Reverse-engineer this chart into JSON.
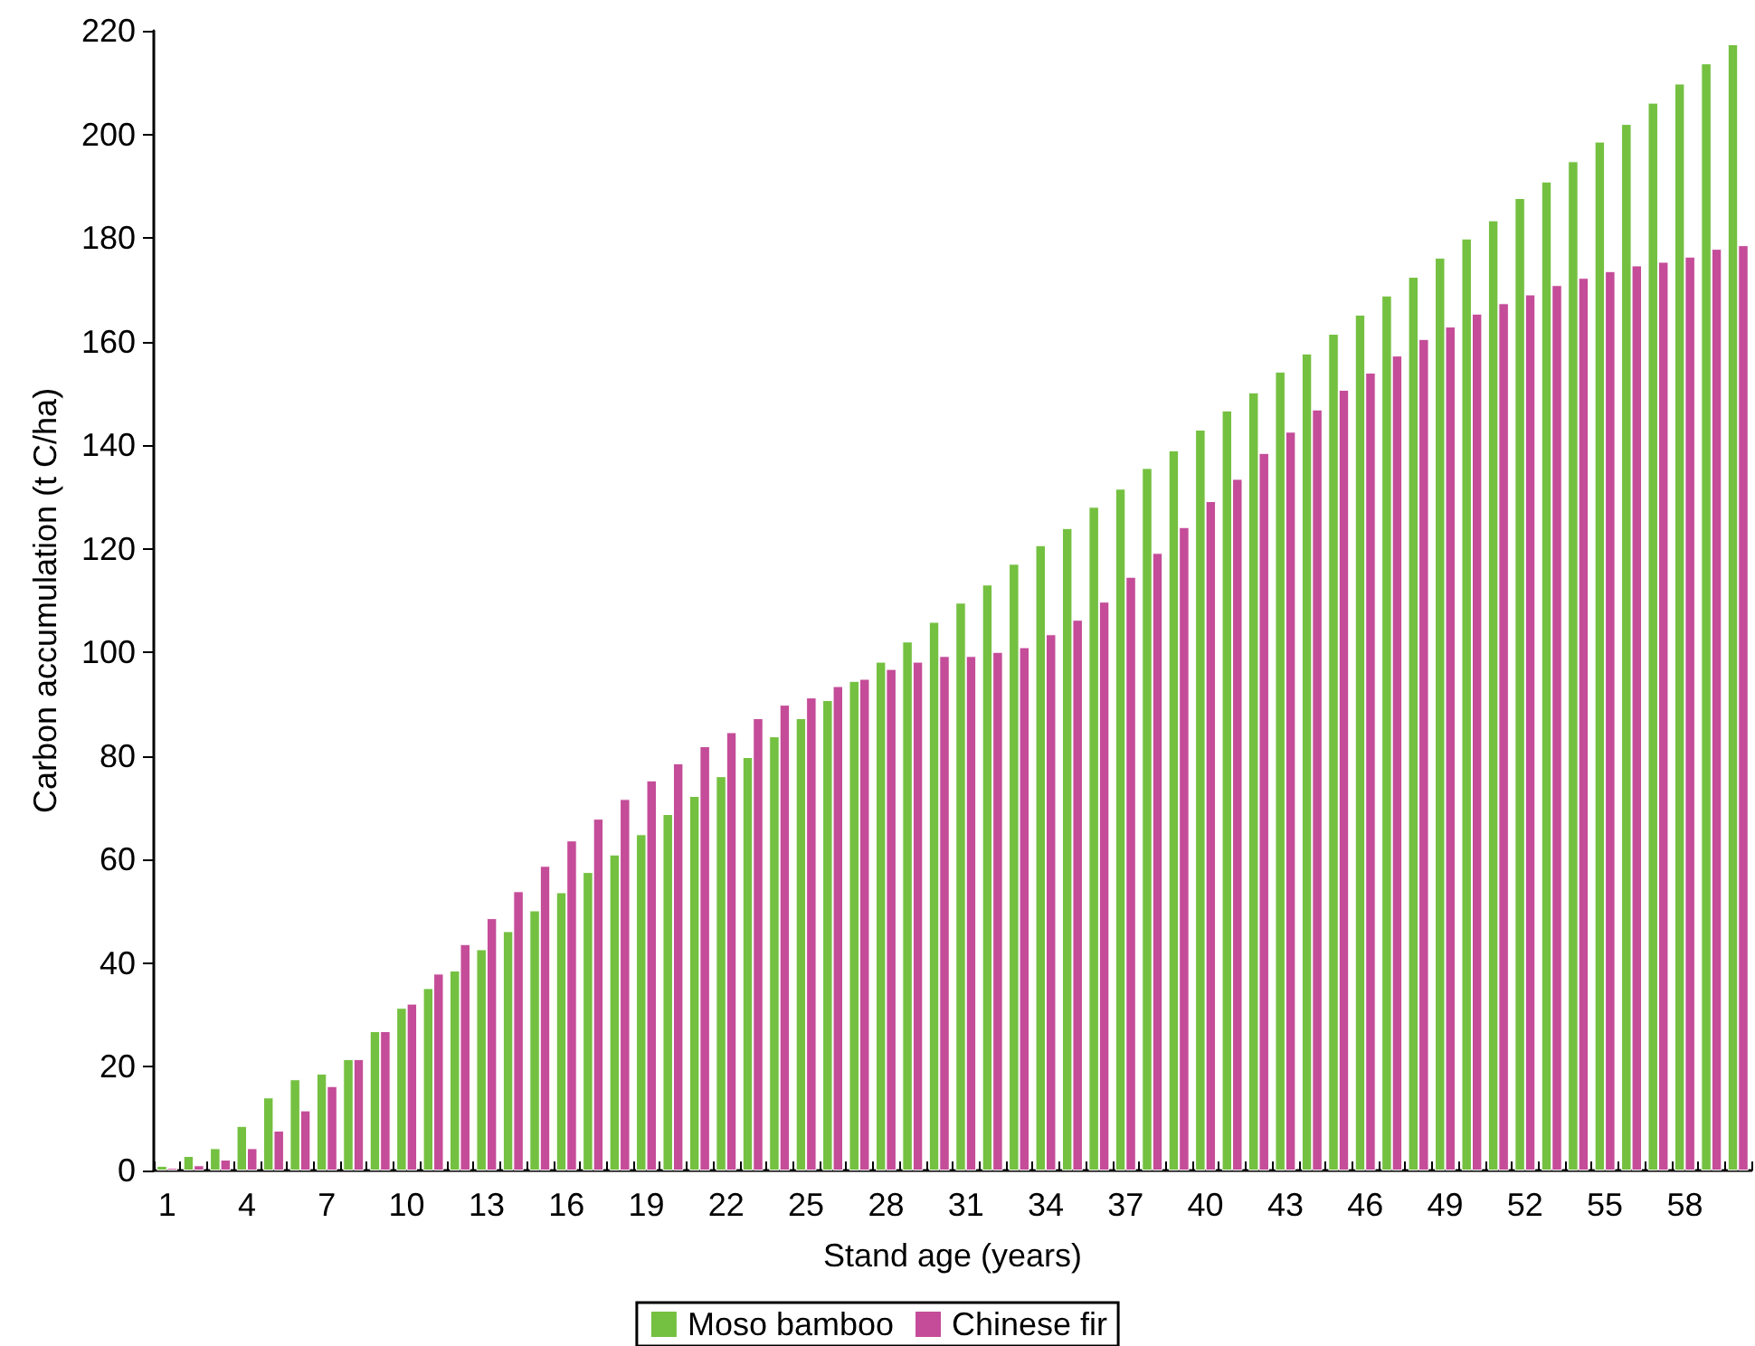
{
  "chart_data": {
    "type": "bar",
    "xlabel": "Stand age (years)",
    "ylabel": "Carbon accumulation (t C/ha)",
    "categories": [
      "1",
      null,
      null,
      "4",
      null,
      null,
      "7",
      null,
      null,
      "10",
      null,
      null,
      "13",
      null,
      null,
      "16",
      null,
      null,
      "19",
      null,
      null,
      "22",
      null,
      null,
      "25",
      null,
      null,
      "28",
      null,
      null,
      "31",
      null,
      null,
      "34",
      null,
      null,
      "37",
      null,
      null,
      "40",
      null,
      null,
      "43",
      null,
      null,
      "46",
      null,
      null,
      "49",
      null,
      null,
      "52",
      null,
      null,
      "55",
      null,
      null,
      "58",
      null,
      null
    ],
    "series": [
      {
        "name": "Moso bamboo",
        "color": "#74c040",
        "values": [
          0.9,
          2.8,
          4.3,
          8.6,
          14.1,
          17.6,
          18.7,
          21.5,
          26.9,
          31.4,
          35.2,
          38.6,
          42.7,
          46.2,
          50.2,
          53.7,
          57.6,
          61.0,
          64.9,
          68.8,
          72.3,
          76.1,
          79.8,
          83.8,
          87.3,
          90.8,
          94.5,
          98.2,
          102.1,
          105.9,
          109.6,
          113.1,
          117.1,
          120.7,
          124.0,
          128.1,
          131.6,
          135.6,
          139.0,
          143.0,
          146.7,
          150.2,
          154.2,
          157.7,
          161.5,
          165.2,
          168.9,
          172.5,
          176.2,
          179.9,
          183.4,
          187.7,
          190.9,
          194.8,
          198.6,
          202.0,
          206.1,
          209.8,
          213.7,
          217.4
        ]
      },
      {
        "name": "Chinese fir",
        "color": "#c44c98",
        "values": [
          0.5,
          1.0,
          2.1,
          4.3,
          7.7,
          11.6,
          16.3,
          21.5,
          26.9,
          32.2,
          38.0,
          43.7,
          48.7,
          53.9,
          58.8,
          63.7,
          67.9,
          71.7,
          75.3,
          78.6,
          81.9,
          84.6,
          87.3,
          89.9,
          91.3,
          93.5,
          94.9,
          96.8,
          98.2,
          99.3,
          99.3,
          100.1,
          101.0,
          103.5,
          106.3,
          109.8,
          114.6,
          119.2,
          124.2,
          129.2,
          133.5,
          138.5,
          142.6,
          146.9,
          150.7,
          154.0,
          157.3,
          160.5,
          162.9,
          165.4,
          167.4,
          169.1,
          170.9,
          172.3,
          173.6,
          174.7,
          175.4,
          176.4,
          177.9,
          178.6
        ]
      }
    ],
    "ylim": [
      0,
      220
    ],
    "yticks": [
      0,
      20,
      40,
      60,
      80,
      100,
      120,
      140,
      160,
      180,
      200,
      220
    ],
    "legend": "bottom"
  }
}
